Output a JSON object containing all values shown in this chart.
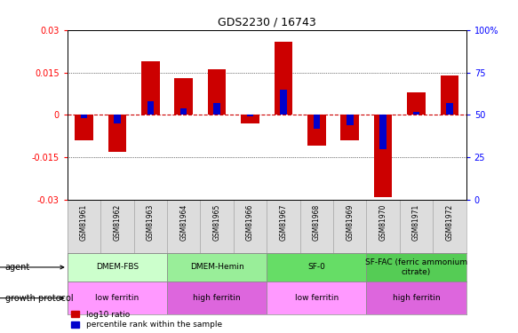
{
  "title": "GDS2230 / 16743",
  "samples": [
    "GSM81961",
    "GSM81962",
    "GSM81963",
    "GSM81964",
    "GSM81965",
    "GSM81966",
    "GSM81967",
    "GSM81968",
    "GSM81969",
    "GSM81970",
    "GSM81971",
    "GSM81972"
  ],
  "log10_ratio": [
    -0.009,
    -0.013,
    0.019,
    0.013,
    0.016,
    -0.003,
    0.026,
    -0.011,
    -0.009,
    -0.029,
    0.008,
    0.014
  ],
  "percentile_rank": [
    48,
    45,
    58,
    54,
    57,
    49,
    65,
    42,
    44,
    30,
    52,
    57
  ],
  "ylim": [
    -0.03,
    0.03
  ],
  "yticks_left": [
    -0.03,
    -0.015,
    0,
    0.015,
    0.03
  ],
  "yticks_right": [
    0,
    25,
    50,
    75,
    100
  ],
  "bar_color": "#cc0000",
  "blue_color": "#0000cc",
  "zero_line_color": "#cc0000",
  "grid_color": "#000000",
  "agent_groups": [
    {
      "label": "DMEM-FBS",
      "start": 0,
      "end": 3,
      "color": "#ccffcc"
    },
    {
      "label": "DMEM-Hemin",
      "start": 3,
      "end": 6,
      "color": "#99ee99"
    },
    {
      "label": "SF-0",
      "start": 6,
      "end": 9,
      "color": "#66dd66"
    },
    {
      "label": "SF-FAC (ferric ammonium\ncitrate)",
      "start": 9,
      "end": 12,
      "color": "#55cc55"
    }
  ],
  "protocol_groups": [
    {
      "label": "low ferritin",
      "start": 0,
      "end": 3,
      "color": "#ff99ff"
    },
    {
      "label": "high ferritin",
      "start": 3,
      "end": 6,
      "color": "#dd66dd"
    },
    {
      "label": "low ferritin",
      "start": 6,
      "end": 9,
      "color": "#ff99ff"
    },
    {
      "label": "high ferritin",
      "start": 9,
      "end": 12,
      "color": "#dd66dd"
    }
  ],
  "agent_label": "agent",
  "protocol_label": "growth protocol",
  "legend_red": "log10 ratio",
  "legend_blue": "percentile rank within the sample",
  "bar_width": 0.55,
  "blue_bar_width": 0.2,
  "xtick_label_color": "#888888",
  "xtick_bg_color": "#dddddd"
}
